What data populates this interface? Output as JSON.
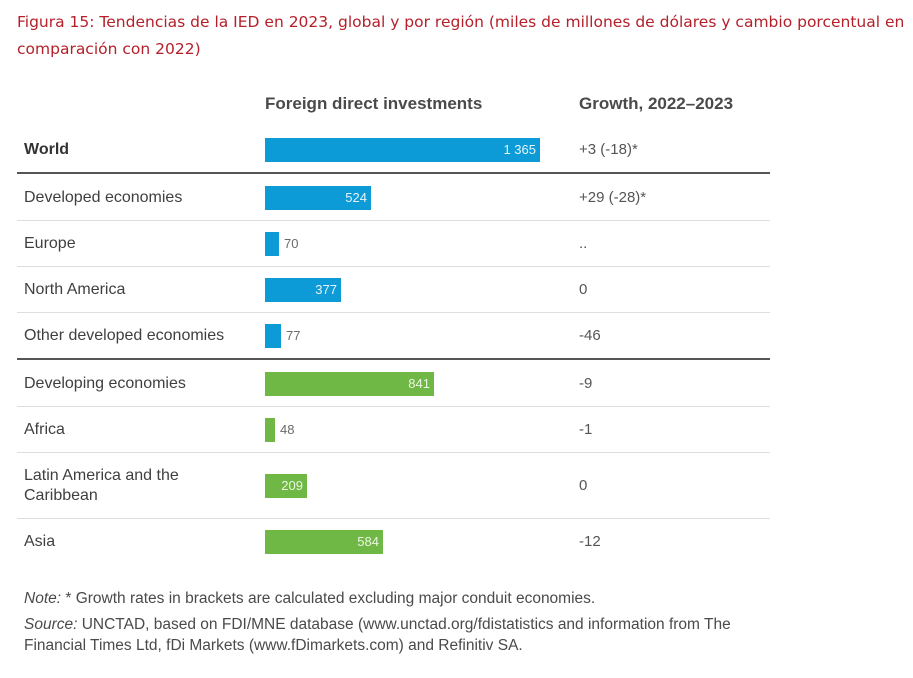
{
  "caption": "Figura 15: Tendencias de la IED en 2023, global y por región (miles de millones de dólares y cambio porcentual en comparación con 2022)",
  "headers": {
    "fdi": "Foreign direct investments",
    "growth": "Growth, 2022–2023"
  },
  "colors": {
    "developed": "#0d9bd8",
    "developing": "#6fb845",
    "caption": "#b5202a"
  },
  "chart_data": {
    "type": "bar",
    "orientation": "horizontal",
    "title": "Figura 15: Tendencias de la IED en 2023, global y por región (miles de millones de dólares y cambio porcentual en comparación con 2022)",
    "xlabel": "Foreign direct investments",
    "ylabel": "",
    "xlim": [
      0,
      1365
    ],
    "categories": [
      "World",
      "Developed economies",
      "Europe",
      "North America",
      "Other developed economies",
      "Developing economies",
      "Africa",
      "Latin America and the Caribbean",
      "Asia"
    ],
    "values": [
      1365,
      524,
      70,
      377,
      77,
      841,
      48,
      209,
      584
    ],
    "value_labels": [
      "1 365",
      "524",
      "70",
      "377",
      "77",
      "841",
      "48",
      "209",
      "584"
    ],
    "growth_2022_2023": [
      "+3 (-18)*",
      "+29 (-28)*",
      "..",
      "0",
      "-46",
      "-9",
      "-1",
      "0",
      "-12"
    ],
    "groups": [
      "developed",
      "developed",
      "developed",
      "developed",
      "developed",
      "developing",
      "developing",
      "developing",
      "developing"
    ]
  },
  "note": {
    "note_label": "Note:",
    "note_text": " * Growth rates in brackets are calculated excluding major conduit economies.",
    "source_label": "Source:",
    "source_line1": " UNCTAD, based on FDI/MNE database (www.unctad.org/fdistatistics and information from The",
    "source_line2": "Financial Times Ltd, fDi Markets (www.fDimarkets.com) and Refinitiv SA."
  }
}
